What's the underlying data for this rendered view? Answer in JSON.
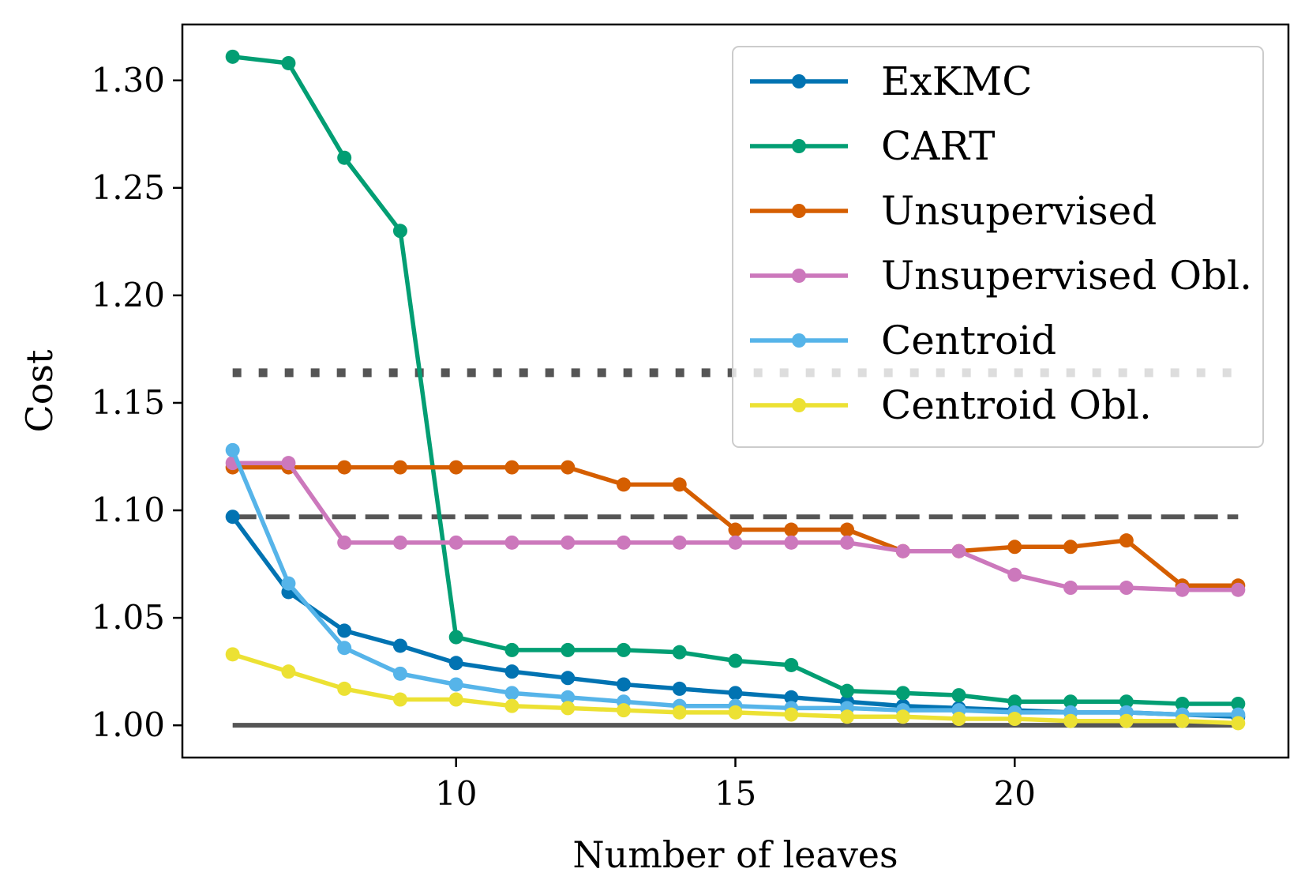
{
  "chart_data": {
    "type": "line",
    "title": "",
    "xlabel": "Number of leaves",
    "ylabel": "Cost",
    "xlim": [
      5.1,
      24.9
    ],
    "ylim": [
      0.985,
      1.326
    ],
    "xticks": [
      10,
      15,
      20
    ],
    "xtick_labels": [
      "10",
      "15",
      "20"
    ],
    "yticks": [
      1.0,
      1.05,
      1.1,
      1.15,
      1.2,
      1.25,
      1.3
    ],
    "ytick_labels": [
      "1.00",
      "1.05",
      "1.10",
      "1.15",
      "1.20",
      "1.25",
      "1.30"
    ],
    "grid": false,
    "legend_position": "top-right",
    "x": [
      6,
      7,
      8,
      9,
      10,
      11,
      12,
      13,
      14,
      15,
      16,
      17,
      18,
      19,
      20,
      21,
      22,
      23,
      24
    ],
    "series": [
      {
        "name": "ExKMC",
        "color": "#0173b2",
        "values": [
          1.097,
          1.062,
          1.044,
          1.037,
          1.029,
          1.025,
          1.022,
          1.019,
          1.017,
          1.015,
          1.013,
          1.011,
          1.009,
          1.008,
          1.007,
          1.006,
          1.006,
          1.005,
          1.004
        ]
      },
      {
        "name": "CART",
        "color": "#029e73",
        "values": [
          1.311,
          1.308,
          1.264,
          1.23,
          1.041,
          1.035,
          1.035,
          1.035,
          1.034,
          1.03,
          1.028,
          1.016,
          1.015,
          1.014,
          1.011,
          1.011,
          1.011,
          1.01,
          1.01
        ]
      },
      {
        "name": "Unsupervised",
        "color": "#d55e00",
        "values": [
          1.12,
          1.12,
          1.12,
          1.12,
          1.12,
          1.12,
          1.12,
          1.112,
          1.112,
          1.091,
          1.091,
          1.091,
          1.081,
          1.081,
          1.083,
          1.083,
          1.086,
          1.065,
          1.065
        ]
      },
      {
        "name": "Unsupervised Obl.",
        "color": "#cc78bc",
        "values": [
          1.122,
          1.122,
          1.085,
          1.085,
          1.085,
          1.085,
          1.085,
          1.085,
          1.085,
          1.085,
          1.085,
          1.085,
          1.081,
          1.081,
          1.07,
          1.064,
          1.064,
          1.063,
          1.063
        ]
      },
      {
        "name": "Centroid",
        "color": "#56b4e9",
        "values": [
          1.128,
          1.066,
          1.036,
          1.024,
          1.019,
          1.015,
          1.013,
          1.011,
          1.009,
          1.009,
          1.008,
          1.008,
          1.007,
          1.007,
          1.006,
          1.006,
          1.006,
          1.005,
          1.005
        ]
      },
      {
        "name": "Centroid Obl.",
        "color": "#ece133",
        "values": [
          1.033,
          1.025,
          1.017,
          1.012,
          1.012,
          1.009,
          1.008,
          1.007,
          1.006,
          1.006,
          1.005,
          1.004,
          1.004,
          1.003,
          1.003,
          1.002,
          1.002,
          1.002,
          1.001
        ]
      }
    ],
    "reference_lines": [
      {
        "style": "dotted",
        "color": "#555555",
        "y": 1.164,
        "x_range": [
          6,
          24
        ]
      },
      {
        "style": "dashed",
        "color": "#555555",
        "y": 1.097,
        "x_range": [
          6,
          24
        ]
      },
      {
        "style": "solid",
        "color": "#555555",
        "y": 1.0,
        "x_range": [
          6,
          24
        ]
      }
    ]
  }
}
